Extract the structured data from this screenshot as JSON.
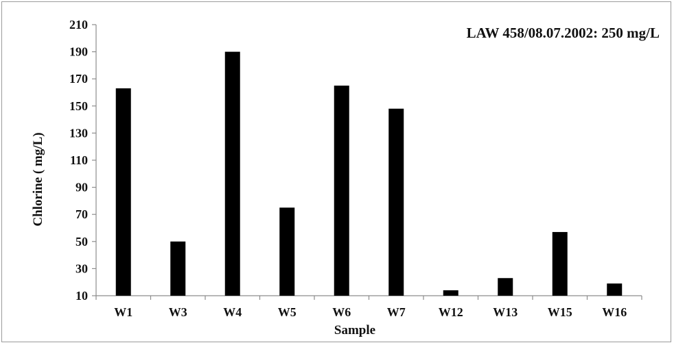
{
  "chart_data": {
    "type": "bar",
    "title": "LAW 458/08.07.2002: 250 mg/L",
    "xlabel": "Sample",
    "ylabel": "Chlorine ( mg/L)",
    "categories": [
      "W1",
      "W3",
      "W4",
      "W5",
      "W6",
      "W7",
      "W12",
      "W13",
      "W15",
      "W16"
    ],
    "values": [
      163,
      50,
      190,
      75,
      165,
      148,
      14,
      23,
      57,
      19
    ],
    "ylim": [
      10,
      210
    ],
    "yticks": [
      10,
      30,
      50,
      70,
      90,
      110,
      130,
      150,
      170,
      190,
      210
    ],
    "grid": false,
    "legend": "none",
    "bar_color": "#000000",
    "axis_color": "#8c8c8c"
  }
}
